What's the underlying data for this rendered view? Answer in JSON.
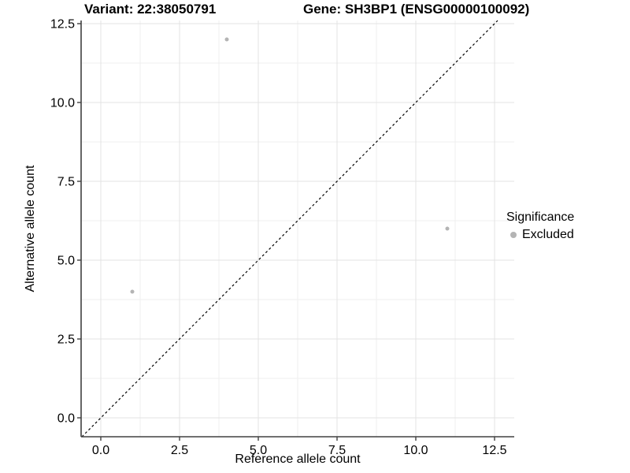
{
  "chart_data": {
    "type": "scatter",
    "titles": {
      "variant": "Variant: 22:38050791",
      "gene": "Gene: SH3BP1 (ENSG00000100092)"
    },
    "xlabel": "Reference allele count",
    "ylabel": "Alternative allele count",
    "xlim": [
      -0.625,
      13.125
    ],
    "ylim": [
      -0.6,
      12.6
    ],
    "xticks": {
      "values": [
        0,
        2.5,
        5,
        7.5,
        10,
        12.5
      ],
      "labels": [
        "0.0",
        "2.5",
        "5.0",
        "7.5",
        "10.0",
        "12.5"
      ]
    },
    "yticks": {
      "values": [
        0,
        2.5,
        5,
        7.5,
        10,
        12.5
      ],
      "labels": [
        "0.0",
        "2.5",
        "5.0",
        "7.5",
        "10.0",
        "12.5"
      ]
    },
    "minor_xticks": [
      1.25,
      3.75,
      6.25,
      8.75,
      11.25
    ],
    "minor_yticks": [
      1.25,
      3.75,
      6.25,
      8.75,
      11.25
    ],
    "grid": "major+minor",
    "series": [
      {
        "name": "Excluded",
        "color": "#b4b4b4",
        "points": [
          {
            "x": 1,
            "y": 4
          },
          {
            "x": 4,
            "y": 12
          },
          {
            "x": 11,
            "y": 6
          }
        ]
      }
    ],
    "reference_line": {
      "type": "identity",
      "style": "dashed",
      "color": "#000000"
    },
    "legend": {
      "title": "Significance",
      "position": "right",
      "items": [
        {
          "label": "Excluded",
          "marker_color": "#b4b4b4"
        }
      ]
    }
  },
  "colors": {
    "background": "#ffffff",
    "grid_major": "#e3e3e3",
    "grid_minor": "#efefef",
    "axis_line": "#404040",
    "tick_mark": "#404040",
    "text": "#000000",
    "point": "#b4b4b4"
  }
}
